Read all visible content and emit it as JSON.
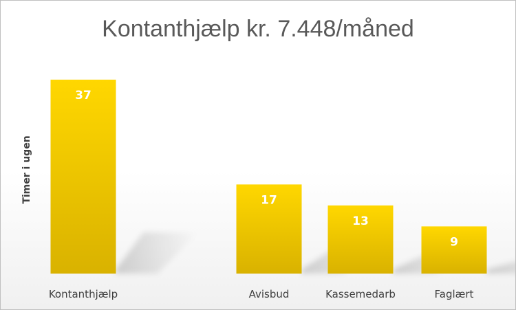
{
  "chart_data": {
    "type": "bar",
    "title": "Kontanthjælp kr. 7.448/måned",
    "xlabel": "",
    "ylabel": "Timer i ugen",
    "categories": [
      "Kontanthjælp",
      "Avisbud",
      "Kassemedarb",
      "Faglært"
    ],
    "values": [
      37,
      17,
      13,
      9
    ],
    "data_labels": [
      "37",
      "17",
      "13",
      "9"
    ],
    "ylim": [
      0,
      40
    ],
    "grid": false,
    "legend": "none"
  },
  "colors": {
    "bar_top": "#ffd700",
    "bar_bottom": "#d9b200",
    "title": "#595959",
    "text": "#404040"
  }
}
